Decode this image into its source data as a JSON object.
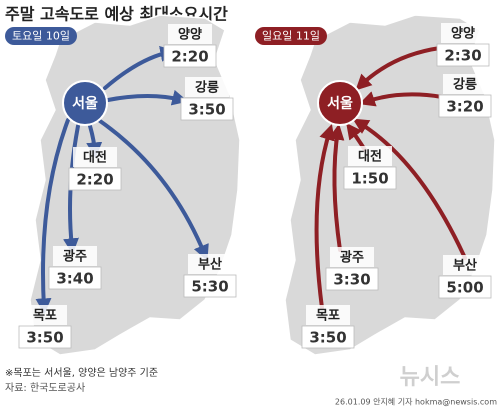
{
  "title": "주말 고속도로 예상 최대소요시간",
  "panels": [
    {
      "tag": "토요일 10일",
      "hub": "서울",
      "destinations": [
        {
          "name": "양양",
          "time": "2:20"
        },
        {
          "name": "강릉",
          "time": "3:50"
        },
        {
          "name": "대전",
          "time": "2:20"
        },
        {
          "name": "광주",
          "time": "3:40"
        },
        {
          "name": "부산",
          "time": "5:30"
        },
        {
          "name": "목포",
          "time": "3:50"
        }
      ]
    },
    {
      "tag": "일요일 11일",
      "hub": "서울",
      "destinations": [
        {
          "name": "양양",
          "time": "2:30"
        },
        {
          "name": "강릉",
          "time": "3:20"
        },
        {
          "name": "대전",
          "time": "1:50"
        },
        {
          "name": "광주",
          "time": "3:30"
        },
        {
          "name": "부산",
          "time": "5:00"
        },
        {
          "name": "목포",
          "time": "3:50"
        }
      ]
    }
  ],
  "footnote": "※목포는 서서울, 양양은 남양주 기준",
  "source": "자료: 한국도로공사",
  "watermark": "뉴시스",
  "credit": "26.01.09 안지혜 기자 hokma@newsis.com"
}
